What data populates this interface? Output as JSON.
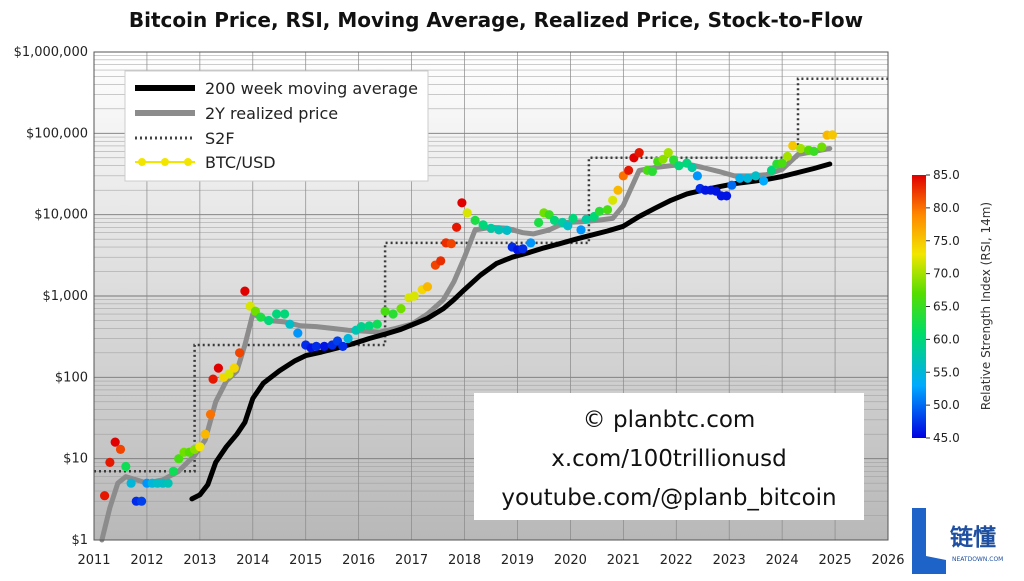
{
  "chart_data": {
    "type": "line",
    "title": "Bitcoin Price, RSI, Moving Average, Realized Price, Stock-to-Flow",
    "y_scale": "log",
    "ylim": [
      1,
      1000000
    ],
    "xlim": [
      2011,
      2026
    ],
    "y_ticks": [
      {
        "value": 1,
        "label": "$1"
      },
      {
        "value": 10,
        "label": "$10"
      },
      {
        "value": 100,
        "label": "$100"
      },
      {
        "value": 1000,
        "label": "$1,000"
      },
      {
        "value": 10000,
        "label": "$10,000"
      },
      {
        "value": 100000,
        "label": "$100,000"
      },
      {
        "value": 1000000,
        "label": "$1,000,000"
      }
    ],
    "x_ticks": [
      {
        "value": 2011,
        "label": "2011"
      },
      {
        "value": 2012,
        "label": "2012"
      },
      {
        "value": 2013,
        "label": "2013"
      },
      {
        "value": 2014,
        "label": "2014"
      },
      {
        "value": 2015,
        "label": "2015"
      },
      {
        "value": 2016,
        "label": "2016"
      },
      {
        "value": 2017,
        "label": "2017"
      },
      {
        "value": 2018,
        "label": "2018"
      },
      {
        "value": 2019,
        "label": "2019"
      },
      {
        "value": 2020,
        "label": "2020"
      },
      {
        "value": 2021,
        "label": "2021"
      },
      {
        "value": 2022,
        "label": "2022"
      },
      {
        "value": 2023,
        "label": "2023"
      },
      {
        "value": 2024,
        "label": "2024"
      },
      {
        "value": 2025,
        "label": "2025"
      },
      {
        "value": 2026,
        "label": "2026"
      }
    ],
    "legend": {
      "position": "top-left",
      "entries": [
        {
          "label": "200 week moving average",
          "color": "#000000",
          "style": "solid-thick"
        },
        {
          "label": "2Y realized price",
          "color": "#8c8c8c",
          "style": "solid-thick"
        },
        {
          "label": "S2F",
          "color": "#444444",
          "style": "dotted"
        },
        {
          "label": "BTC/USD",
          "color": "#f2e600",
          "style": "markers"
        }
      ]
    },
    "series": [
      {
        "name": "200 week moving average",
        "color": "#000000",
        "x": [
          2012.85,
          2013.0,
          2013.15,
          2013.3,
          2013.5,
          2013.7,
          2013.85,
          2014.0,
          2014.2,
          2014.5,
          2014.8,
          2015.0,
          2015.3,
          2015.6,
          2015.9,
          2016.2,
          2016.5,
          2016.8,
          2017.0,
          2017.3,
          2017.6,
          2017.8,
          2018.0,
          2018.3,
          2018.6,
          2018.9,
          2019.2,
          2019.5,
          2019.8,
          2020.1,
          2020.4,
          2020.7,
          2021.0,
          2021.3,
          2021.6,
          2021.9,
          2022.2,
          2022.5,
          2022.8,
          2023.1,
          2023.4,
          2023.7,
          2024.0,
          2024.3,
          2024.6,
          2024.9
        ],
        "values": [
          3.2,
          3.6,
          4.8,
          9,
          14,
          20,
          28,
          55,
          85,
          120,
          160,
          185,
          205,
          230,
          260,
          300,
          340,
          390,
          440,
          530,
          700,
          900,
          1200,
          1800,
          2500,
          3000,
          3400,
          3900,
          4400,
          5000,
          5600,
          6300,
          7200,
          9500,
          12000,
          15000,
          18000,
          20000,
          22000,
          24000,
          25500,
          27000,
          29500,
          33000,
          37000,
          42000
        ]
      },
      {
        "name": "2Y realized price",
        "color": "#8c8c8c",
        "x": [
          2011.15,
          2011.3,
          2011.45,
          2011.6,
          2011.8,
          2012.0,
          2012.3,
          2012.6,
          2012.9,
          2013.1,
          2013.3,
          2013.5,
          2013.7,
          2013.85,
          2014.0,
          2014.3,
          2014.6,
          2014.9,
          2015.2,
          2015.5,
          2015.8,
          2016.1,
          2016.4,
          2016.7,
          2017.0,
          2017.3,
          2017.6,
          2017.8,
          2018.0,
          2018.2,
          2018.5,
          2018.8,
          2019.1,
          2019.3,
          2019.6,
          2019.9,
          2020.2,
          2020.5,
          2020.8,
          2021.0,
          2021.3,
          2021.6,
          2021.9,
          2022.2,
          2022.5,
          2022.8,
          2023.1,
          2023.4,
          2023.7,
          2024.0,
          2024.3,
          2024.6,
          2024.9
        ],
        "values": [
          1,
          2.5,
          5,
          6,
          5.5,
          5,
          5.5,
          7,
          11,
          17,
          50,
          90,
          120,
          250,
          600,
          500,
          480,
          430,
          420,
          400,
          380,
          370,
          360,
          400,
          450,
          600,
          900,
          1500,
          3000,
          6500,
          7000,
          6800,
          6000,
          5800,
          6500,
          8000,
          8200,
          8500,
          9000,
          13000,
          35000,
          38000,
          40000,
          42000,
          38000,
          34000,
          30000,
          30000,
          31000,
          36000,
          55000,
          60000,
          65000
        ]
      },
      {
        "name": "S2F",
        "color": "#3a3a3a",
        "x": [
          2011.0,
          2012.9,
          2012.9,
          2016.5,
          2016.5,
          2020.35,
          2020.35,
          2024.3,
          2024.3,
          2026.0
        ],
        "values": [
          7,
          7,
          250,
          250,
          4500,
          4500,
          50000,
          50000,
          470000,
          470000
        ]
      }
    ],
    "btc_usd": {
      "name": "BTC/USD",
      "color_scale": {
        "label": "Relative Strength Index (RSI, 14m)",
        "min": 45.0,
        "max": 85.0,
        "ticks": [
          {
            "value": 85,
            "label": "85.0"
          },
          {
            "value": 80,
            "label": "80.0"
          },
          {
            "value": 75,
            "label": "75.0"
          },
          {
            "value": 70,
            "label": "70.0"
          },
          {
            "value": 65,
            "label": "65.0"
          },
          {
            "value": 60,
            "label": "60.0"
          },
          {
            "value": 55,
            "label": "55.0"
          },
          {
            "value": 50,
            "label": "50.0"
          },
          {
            "value": 45,
            "label": "45.0"
          }
        ]
      },
      "points": [
        [
          2011.2,
          3.5,
          84
        ],
        [
          2011.3,
          9,
          84
        ],
        [
          2011.4,
          16,
          85
        ],
        [
          2011.5,
          13,
          82
        ],
        [
          2011.6,
          8,
          62
        ],
        [
          2011.7,
          5,
          55
        ],
        [
          2011.8,
          3,
          47
        ],
        [
          2011.9,
          3,
          48
        ],
        [
          2012.0,
          5,
          52
        ],
        [
          2012.1,
          5,
          55
        ],
        [
          2012.2,
          5,
          56
        ],
        [
          2012.3,
          5,
          56
        ],
        [
          2012.4,
          5,
          57
        ],
        [
          2012.5,
          7,
          62
        ],
        [
          2012.6,
          10,
          66
        ],
        [
          2012.7,
          12,
          68
        ],
        [
          2012.8,
          12,
          67
        ],
        [
          2012.9,
          13,
          69
        ],
        [
          2013.0,
          14,
          73
        ],
        [
          2013.1,
          20,
          76
        ],
        [
          2013.2,
          35,
          80
        ],
        [
          2013.25,
          95,
          84
        ],
        [
          2013.35,
          130,
          85
        ],
        [
          2013.45,
          100,
          74
        ],
        [
          2013.55,
          110,
          72
        ],
        [
          2013.65,
          130,
          74
        ],
        [
          2013.75,
          200,
          82
        ],
        [
          2013.85,
          1150,
          85
        ],
        [
          2013.95,
          750,
          72
        ],
        [
          2014.05,
          650,
          68
        ],
        [
          2014.15,
          550,
          63
        ],
        [
          2014.3,
          500,
          60
        ],
        [
          2014.45,
          600,
          60
        ],
        [
          2014.6,
          600,
          60
        ],
        [
          2014.7,
          450,
          56
        ],
        [
          2014.85,
          350,
          52
        ],
        [
          2015.0,
          250,
          47
        ],
        [
          2015.1,
          230,
          46
        ],
        [
          2015.2,
          240,
          47
        ],
        [
          2015.35,
          240,
          46
        ],
        [
          2015.5,
          250,
          47
        ],
        [
          2015.6,
          280,
          48
        ],
        [
          2015.7,
          240,
          47
        ],
        [
          2015.8,
          300,
          55
        ],
        [
          2015.95,
          380,
          57
        ],
        [
          2016.05,
          420,
          59
        ],
        [
          2016.2,
          430,
          60
        ],
        [
          2016.35,
          450,
          62
        ],
        [
          2016.5,
          650,
          66
        ],
        [
          2016.65,
          600,
          64
        ],
        [
          2016.8,
          700,
          68
        ],
        [
          2016.95,
          950,
          72
        ],
        [
          2017.05,
          1000,
          72
        ],
        [
          2017.2,
          1200,
          74
        ],
        [
          2017.3,
          1300,
          76
        ],
        [
          2017.45,
          2400,
          82
        ],
        [
          2017.55,
          2700,
          83
        ],
        [
          2017.65,
          4500,
          83
        ],
        [
          2017.75,
          4400,
          82
        ],
        [
          2017.85,
          7000,
          84
        ],
        [
          2017.95,
          14000,
          85
        ],
        [
          2018.05,
          10500,
          72
        ],
        [
          2018.2,
          8500,
          63
        ],
        [
          2018.35,
          7500,
          60
        ],
        [
          2018.5,
          6800,
          58
        ],
        [
          2018.65,
          6500,
          57
        ],
        [
          2018.8,
          6400,
          56
        ],
        [
          2018.9,
          4000,
          47
        ],
        [
          2019.0,
          3700,
          46
        ],
        [
          2019.1,
          3800,
          47
        ],
        [
          2019.25,
          4500,
          52
        ],
        [
          2019.4,
          8000,
          63
        ],
        [
          2019.5,
          10500,
          68
        ],
        [
          2019.6,
          10000,
          65
        ],
        [
          2019.7,
          8500,
          60
        ],
        [
          2019.85,
          8000,
          58
        ],
        [
          2019.95,
          7300,
          56
        ],
        [
          2020.05,
          9000,
          60
        ],
        [
          2020.2,
          6500,
          52
        ],
        [
          2020.3,
          8800,
          58
        ],
        [
          2020.45,
          9500,
          60
        ],
        [
          2020.55,
          11000,
          64
        ],
        [
          2020.7,
          11500,
          66
        ],
        [
          2020.8,
          15000,
          72
        ],
        [
          2020.9,
          20000,
          76
        ],
        [
          2021.0,
          30000,
          80
        ],
        [
          2021.1,
          35000,
          84
        ],
        [
          2021.2,
          50000,
          85
        ],
        [
          2021.3,
          58000,
          84
        ],
        [
          2021.45,
          35000,
          66
        ],
        [
          2021.55,
          34000,
          64
        ],
        [
          2021.65,
          45000,
          66
        ],
        [
          2021.75,
          48000,
          69
        ],
        [
          2021.85,
          58000,
          70
        ],
        [
          2021.95,
          47000,
          64
        ],
        [
          2022.05,
          40000,
          60
        ],
        [
          2022.2,
          43000,
          60
        ],
        [
          2022.3,
          38000,
          58
        ],
        [
          2022.4,
          30000,
          52
        ],
        [
          2022.45,
          21000,
          47
        ],
        [
          2022.55,
          20000,
          46
        ],
        [
          2022.65,
          20000,
          46
        ],
        [
          2022.75,
          19500,
          46
        ],
        [
          2022.85,
          17000,
          46
        ],
        [
          2022.95,
          17000,
          46
        ],
        [
          2023.05,
          23000,
          50
        ],
        [
          2023.2,
          28000,
          54
        ],
        [
          2023.35,
          28000,
          55
        ],
        [
          2023.5,
          30000,
          56
        ],
        [
          2023.65,
          26000,
          53
        ],
        [
          2023.8,
          35000,
          60
        ],
        [
          2023.9,
          42000,
          64
        ],
        [
          2024.0,
          43000,
          66
        ],
        [
          2024.1,
          52000,
          70
        ],
        [
          2024.2,
          70000,
          75
        ],
        [
          2024.35,
          65000,
          70
        ],
        [
          2024.5,
          62000,
          67
        ],
        [
          2024.6,
          60000,
          65
        ],
        [
          2024.75,
          68000,
          68
        ],
        [
          2024.85,
          95000,
          76
        ],
        [
          2024.95,
          96000,
          75
        ]
      ]
    }
  },
  "watermark": {
    "lines": [
      "© planbtc.com",
      "x.com/100trillionusd",
      "youtube.com/@planb_bitcoin"
    ]
  },
  "logo": {
    "letter": "L",
    "text": "链懂",
    "subtext": "NEATDOWN.COM"
  }
}
